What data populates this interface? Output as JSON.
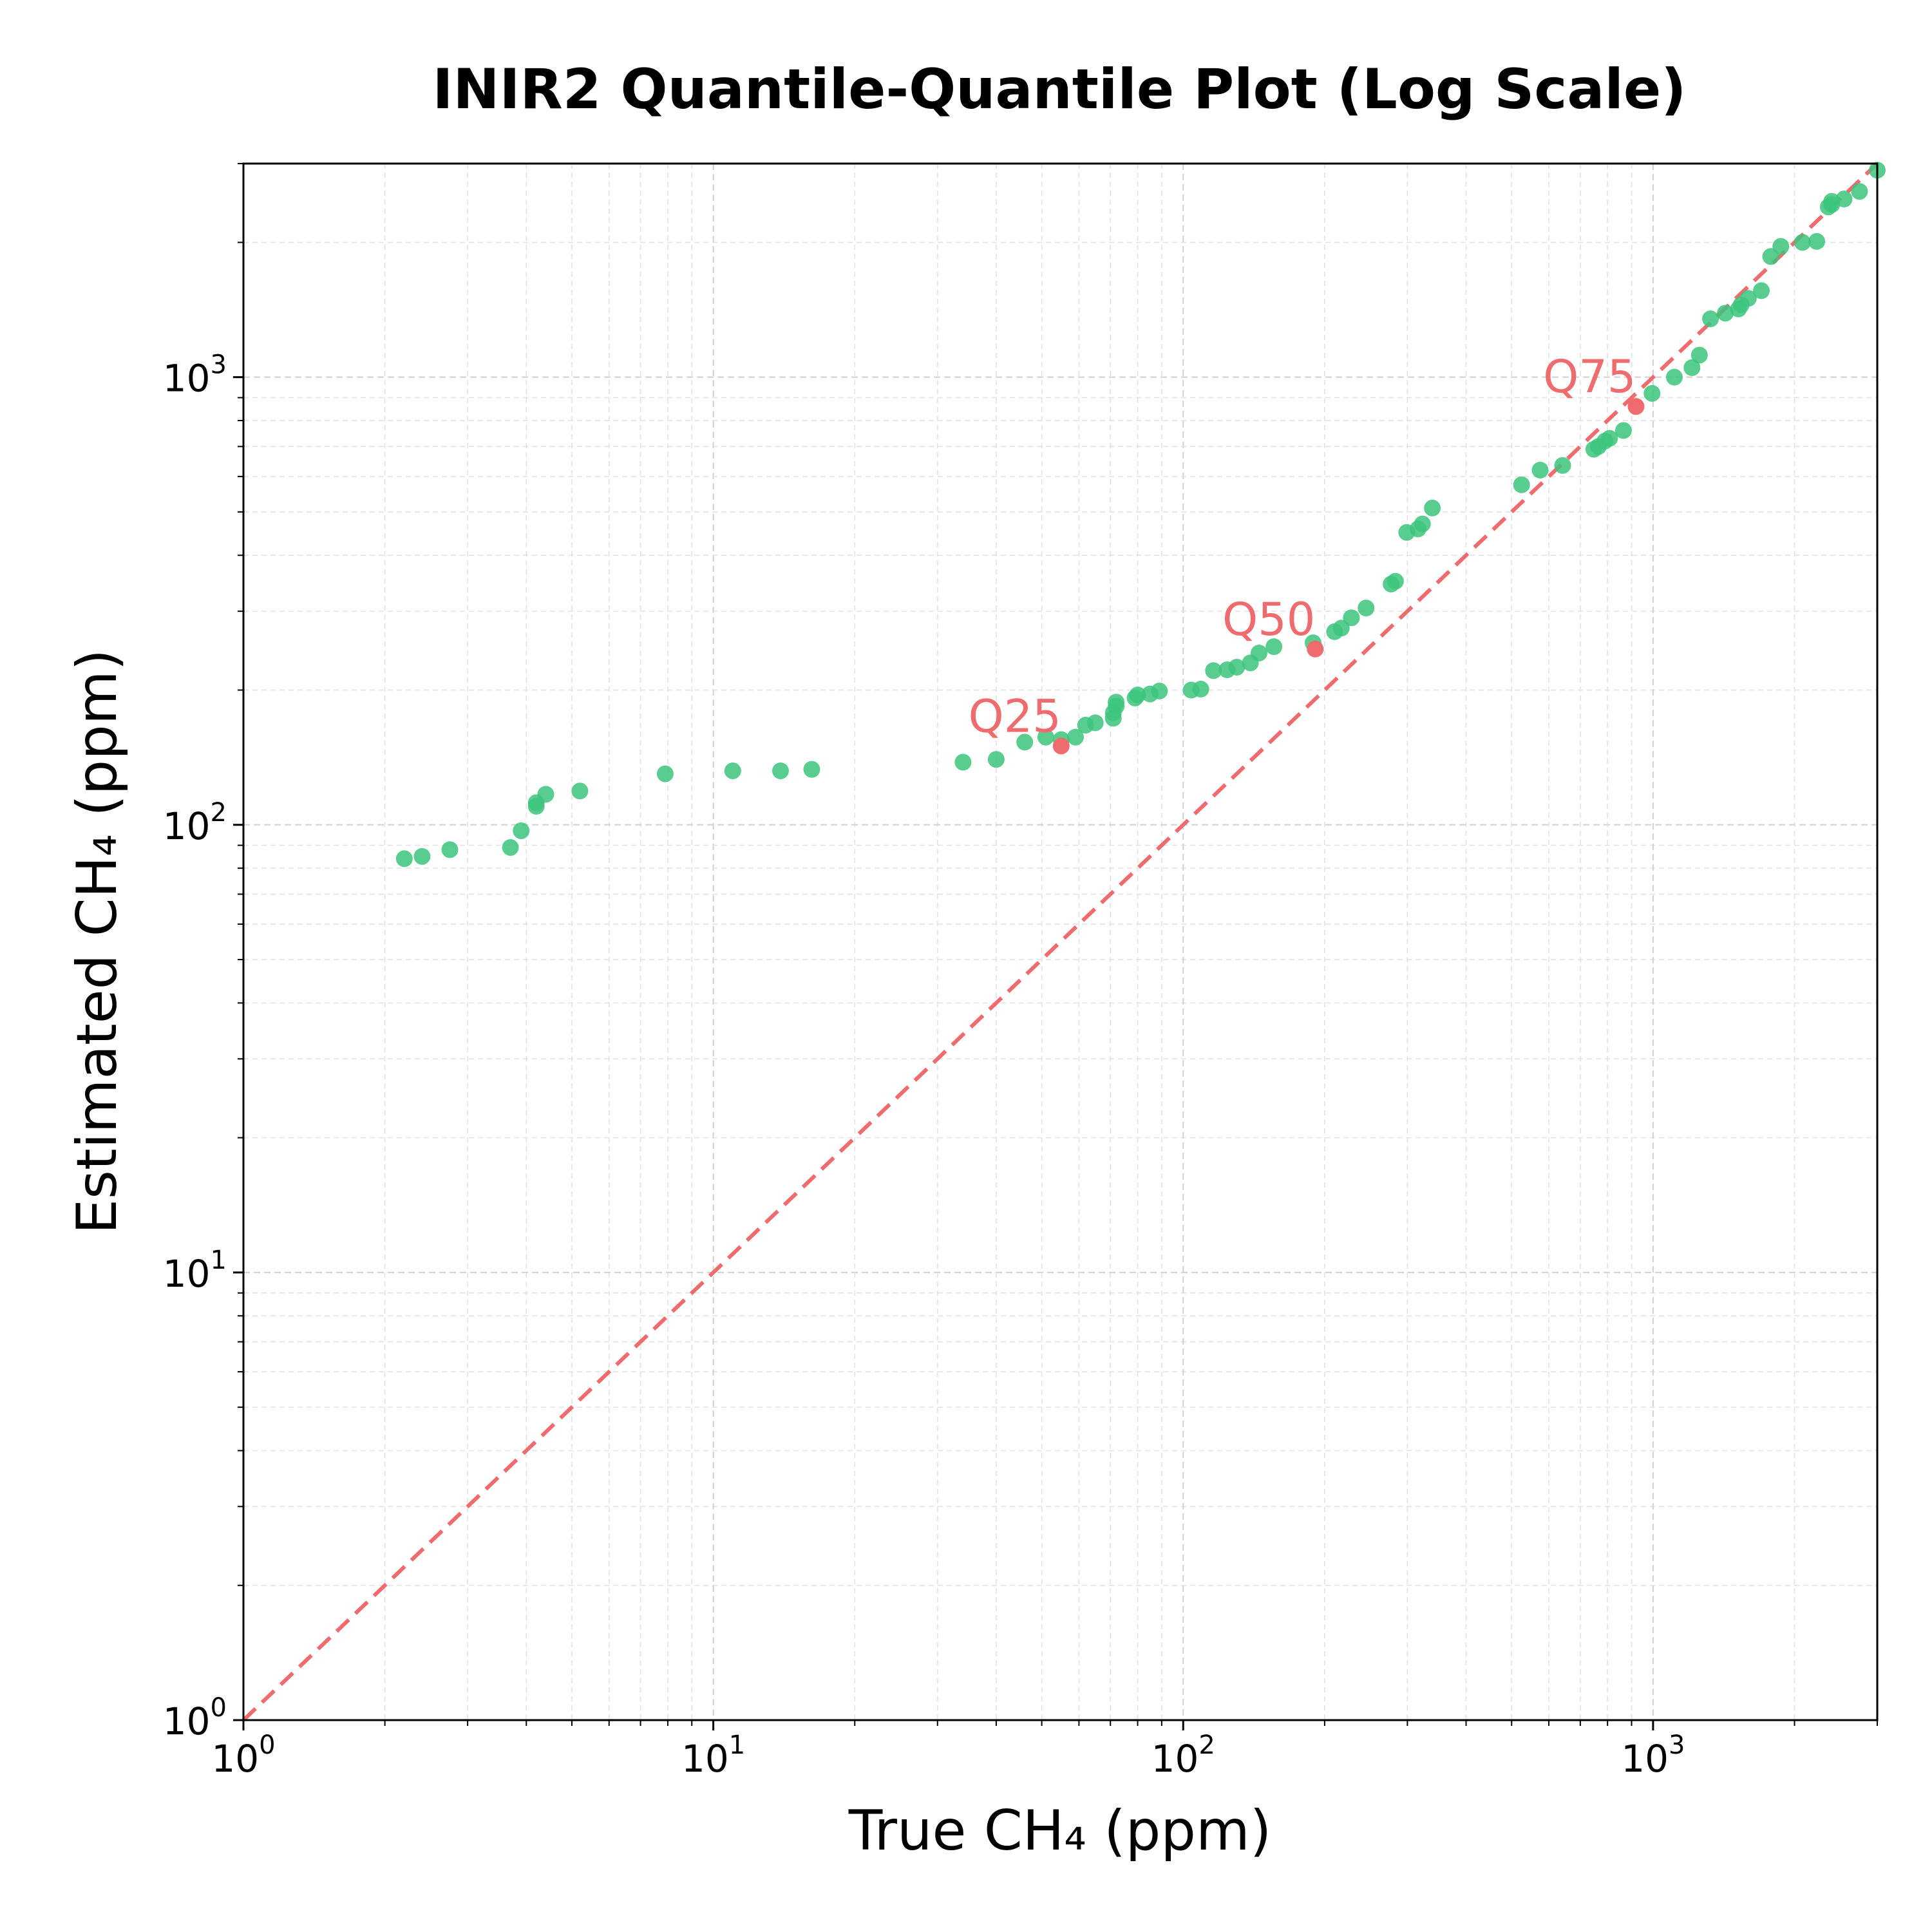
{
  "chart_data": {
    "type": "scatter",
    "title": "INIR2 Quantile-Quantile Plot (Log Scale)",
    "xlabel": "True CH₄ (ppm)",
    "ylabel": "Estimated CH₄ (ppm)",
    "x_scale": "log",
    "y_scale": "log",
    "xlim": [
      1,
      3000
    ],
    "ylim": [
      1,
      3000
    ],
    "grid": true,
    "x_ticks": [
      {
        "base": "10",
        "exp": "0",
        "value": 1
      },
      {
        "base": "10",
        "exp": "1",
        "value": 10
      },
      {
        "base": "10",
        "exp": "2",
        "value": 100
      },
      {
        "base": "10",
        "exp": "3",
        "value": 1000
      }
    ],
    "y_ticks": [
      {
        "base": "10",
        "exp": "0",
        "value": 1
      },
      {
        "base": "10",
        "exp": "1",
        "value": 10
      },
      {
        "base": "10",
        "exp": "2",
        "value": 100
      },
      {
        "base": "10",
        "exp": "3",
        "value": 1000
      }
    ],
    "reference_line": {
      "type": "y=x",
      "style": "dashed",
      "color": "#ee6b6e"
    },
    "points_color": "#3cc47c",
    "quantile_color": "#ee6b6e",
    "points": [
      [
        2.2,
        84
      ],
      [
        2.4,
        85
      ],
      [
        2.75,
        88
      ],
      [
        3.7,
        89
      ],
      [
        3.9,
        97
      ],
      [
        4.2,
        110
      ],
      [
        4.2,
        112
      ],
      [
        4.4,
        117
      ],
      [
        5.2,
        119
      ],
      [
        7.9,
        130
      ],
      [
        11,
        132
      ],
      [
        13.9,
        132
      ],
      [
        16.2,
        133
      ],
      [
        34,
        138
      ],
      [
        40,
        140
      ],
      [
        46,
        153
      ],
      [
        51,
        157
      ],
      [
        55,
        155
      ],
      [
        59,
        157
      ],
      [
        62,
        167
      ],
      [
        65,
        169
      ],
      [
        71,
        173
      ],
      [
        71,
        178
      ],
      [
        72,
        184
      ],
      [
        72,
        188
      ],
      [
        79,
        192
      ],
      [
        80,
        195
      ],
      [
        85,
        196
      ],
      [
        89,
        199
      ],
      [
        104,
        200
      ],
      [
        109,
        201
      ],
      [
        116,
        221
      ],
      [
        124,
        222
      ],
      [
        130,
        225
      ],
      [
        139,
        230
      ],
      [
        145,
        242
      ],
      [
        156,
        250
      ],
      [
        189,
        255
      ],
      [
        210,
        270
      ],
      [
        217,
        275
      ],
      [
        228,
        290
      ],
      [
        245,
        305
      ],
      [
        277,
        345
      ],
      [
        283,
        350
      ],
      [
        299,
        450
      ],
      [
        316,
        458
      ],
      [
        323,
        470
      ],
      [
        339,
        510
      ],
      [
        525,
        575
      ],
      [
        575,
        620
      ],
      [
        642,
        635
      ],
      [
        748,
        690
      ],
      [
        765,
        700
      ],
      [
        790,
        720
      ],
      [
        808,
        730
      ],
      [
        865,
        760
      ],
      [
        995,
        920
      ],
      [
        1110,
        1000
      ],
      [
        1210,
        1050
      ],
      [
        1255,
        1120
      ],
      [
        1325,
        1350
      ],
      [
        1425,
        1390
      ],
      [
        1520,
        1420
      ],
      [
        1540,
        1450
      ],
      [
        1595,
        1500
      ],
      [
        1700,
        1560
      ],
      [
        1780,
        1860
      ],
      [
        1870,
        1960
      ],
      [
        2080,
        2000
      ],
      [
        2230,
        2010
      ],
      [
        2360,
        2400
      ],
      [
        2400,
        2430
      ],
      [
        2400,
        2470
      ],
      [
        2550,
        2500
      ],
      [
        2750,
        2600
      ],
      [
        3000,
        2900
      ]
    ],
    "quantiles": [
      {
        "label": "Q25",
        "x": 55,
        "y": 150
      },
      {
        "label": "Q50",
        "x": 191,
        "y": 247
      },
      {
        "label": "Q75",
        "x": 920,
        "y": 860
      }
    ]
  }
}
